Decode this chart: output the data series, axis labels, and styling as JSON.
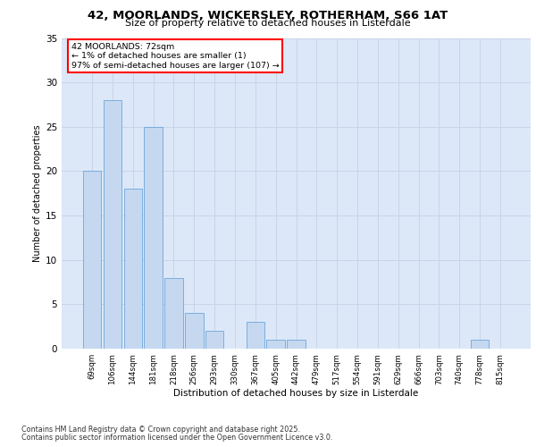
{
  "title_line1": "42, MOORLANDS, WICKERSLEY, ROTHERHAM, S66 1AT",
  "title_line2": "Size of property relative to detached houses in Listerdale",
  "xlabel": "Distribution of detached houses by size in Listerdale",
  "ylabel": "Number of detached properties",
  "categories": [
    "69sqm",
    "106sqm",
    "144sqm",
    "181sqm",
    "218sqm",
    "256sqm",
    "293sqm",
    "330sqm",
    "367sqm",
    "405sqm",
    "442sqm",
    "479sqm",
    "517sqm",
    "554sqm",
    "591sqm",
    "629sqm",
    "666sqm",
    "703sqm",
    "740sqm",
    "778sqm",
    "815sqm"
  ],
  "values": [
    20,
    28,
    18,
    25,
    8,
    4,
    2,
    0,
    3,
    1,
    1,
    0,
    0,
    0,
    0,
    0,
    0,
    0,
    0,
    1,
    0
  ],
  "bar_color": "#c5d8f0",
  "bar_edge_color": "#5b9bd5",
  "annotation_text": "42 MOORLANDS: 72sqm\n← 1% of detached houses are smaller (1)\n97% of semi-detached houses are larger (107) →",
  "annotation_box_color": "#ffffff",
  "annotation_box_edge": "#ff0000",
  "ylim": [
    0,
    35
  ],
  "yticks": [
    0,
    5,
    10,
    15,
    20,
    25,
    30,
    35
  ],
  "grid_color": "#c8d4e8",
  "background_color": "#dce8f8",
  "footer_line1": "Contains HM Land Registry data © Crown copyright and database right 2025.",
  "footer_line2": "Contains public sector information licensed under the Open Government Licence v3.0."
}
